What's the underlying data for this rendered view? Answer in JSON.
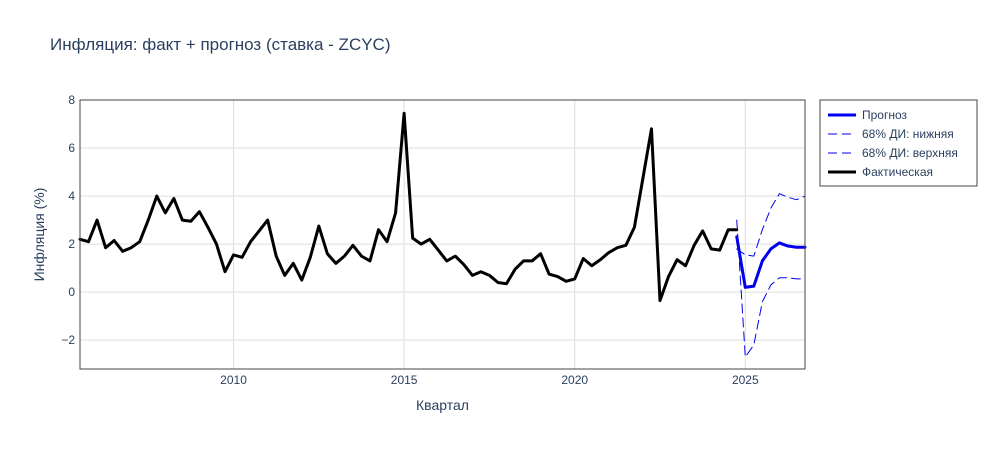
{
  "chart_data": {
    "type": "line",
    "title": "Инфляция: факт + прогноз (ставка - ZCYC)",
    "xlabel": "Квартал",
    "ylabel": "Инфляция (%)",
    "xlim": [
      2005.5,
      2026.75
    ],
    "ylim": [
      -3.2,
      8.0
    ],
    "xticks": [
      2010,
      2015,
      2020,
      2025
    ],
    "xtick_labels": [
      "2010",
      "2015",
      "2020",
      "2025"
    ],
    "yticks": [
      -2,
      0,
      2,
      4,
      6,
      8
    ],
    "ytick_labels": [
      "−2",
      "0",
      "2",
      "4",
      "6",
      "8"
    ],
    "grid": true,
    "legend_position": "right",
    "colors": {
      "forecast": "#0000ee",
      "ci_lower": "#0000ee",
      "ci_upper": "#0000ee",
      "actual": "#000000",
      "axis": "#444444",
      "grid": "#dddddd"
    },
    "series": [
      {
        "name": "Прогноз",
        "style": "solid",
        "x": [
          2024.75,
          2025.0,
          2025.25,
          2025.5,
          2025.75,
          2026.0,
          2026.25,
          2026.5,
          2026.75
        ],
        "y": [
          2.3,
          0.2,
          0.25,
          1.3,
          1.8,
          2.05,
          1.92,
          1.87,
          1.87
        ]
      },
      {
        "name": "68% ДИ: нижняя",
        "style": "dash",
        "x": [
          2024.75,
          2025.0,
          2025.25,
          2025.5,
          2025.75,
          2026.0,
          2026.25,
          2026.5,
          2026.75
        ],
        "y": [
          3.0,
          -2.7,
          -2.2,
          -0.4,
          0.3,
          0.6,
          0.6,
          0.55,
          0.55
        ]
      },
      {
        "name": "68% ДИ: верхняя",
        "style": "dash",
        "x": [
          2024.75,
          2025.0,
          2025.25,
          2025.5,
          2025.75,
          2026.0,
          2026.25,
          2026.5,
          2026.75
        ],
        "y": [
          1.8,
          1.55,
          1.5,
          2.6,
          3.5,
          4.1,
          3.95,
          3.85,
          4.0
        ]
      },
      {
        "name": "Фактическая",
        "style": "solid",
        "x": [
          2005.5,
          2005.75,
          2006.0,
          2006.25,
          2006.5,
          2006.75,
          2007.0,
          2007.25,
          2007.5,
          2007.75,
          2008.0,
          2008.25,
          2008.5,
          2008.75,
          2009.0,
          2009.25,
          2009.5,
          2009.75,
          2010.0,
          2010.25,
          2010.5,
          2010.75,
          2011.0,
          2011.25,
          2011.5,
          2011.75,
          2012.0,
          2012.25,
          2012.5,
          2012.75,
          2013.0,
          2013.25,
          2013.5,
          2013.75,
          2014.0,
          2014.25,
          2014.5,
          2014.75,
          2015.0,
          2015.25,
          2015.5,
          2015.75,
          2016.0,
          2016.25,
          2016.5,
          2016.75,
          2017.0,
          2017.25,
          2017.5,
          2017.75,
          2018.0,
          2018.25,
          2018.5,
          2018.75,
          2019.0,
          2019.25,
          2019.5,
          2019.75,
          2020.0,
          2020.25,
          2020.5,
          2020.75,
          2021.0,
          2021.25,
          2021.5,
          2021.75,
          2022.0,
          2022.25,
          2022.5,
          2022.75,
          2023.0,
          2023.25,
          2023.5,
          2023.75,
          2024.0,
          2024.25,
          2024.5,
          2024.75
        ],
        "y": [
          2.2,
          2.1,
          3.0,
          1.85,
          2.15,
          1.7,
          1.85,
          2.1,
          3.0,
          4.0,
          3.3,
          3.9,
          3.0,
          2.95,
          3.35,
          2.7,
          2.0,
          0.85,
          1.55,
          1.45,
          2.1,
          2.55,
          3.0,
          1.5,
          0.7,
          1.2,
          0.5,
          1.45,
          2.75,
          1.6,
          1.2,
          1.5,
          1.95,
          1.5,
          1.3,
          2.6,
          2.1,
          3.3,
          7.45,
          2.25,
          2.0,
          2.2,
          1.75,
          1.3,
          1.5,
          1.15,
          0.7,
          0.85,
          0.7,
          0.4,
          0.35,
          0.95,
          1.3,
          1.3,
          1.6,
          0.75,
          0.65,
          0.45,
          0.55,
          1.4,
          1.1,
          1.35,
          1.65,
          1.85,
          1.95,
          2.7,
          4.75,
          6.8,
          -0.35,
          0.65,
          1.35,
          1.1,
          1.95,
          2.55,
          1.8,
          1.75,
          2.6,
          2.6
        ]
      }
    ]
  }
}
